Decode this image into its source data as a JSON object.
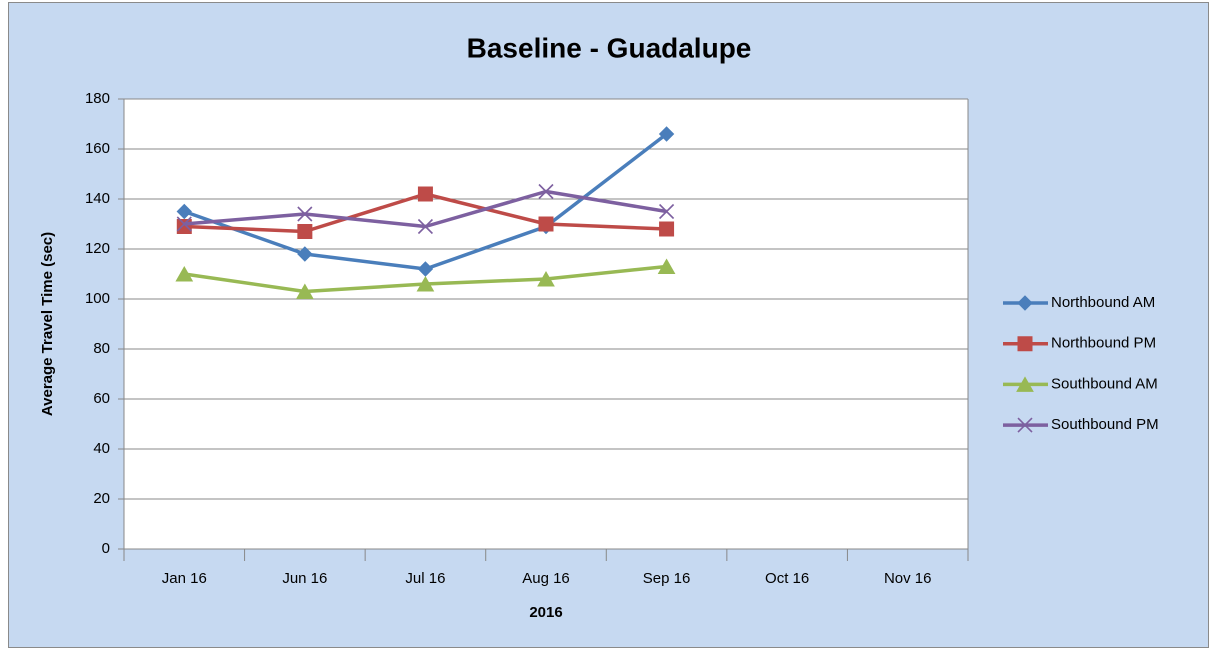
{
  "chart_data": {
    "type": "line",
    "title": "Baseline - Guadalupe",
    "x_label": "2016",
    "y_label": "Average Travel Time (sec)",
    "categories": [
      "Jan 16",
      "Jun 16",
      "Jul 16",
      "Aug 16",
      "Sep 16",
      "Oct 16",
      "Nov 16"
    ],
    "series": [
      {
        "name": "Northbound AM",
        "color": "#4a7ebb",
        "marker": "diamond",
        "values": [
          135,
          118,
          112,
          129,
          166,
          null,
          null
        ]
      },
      {
        "name": "Northbound PM",
        "color": "#be4b48",
        "marker": "square",
        "values": [
          129,
          127,
          142,
          130,
          128,
          null,
          null
        ]
      },
      {
        "name": "Southbound AM",
        "color": "#98b954",
        "marker": "triangle",
        "values": [
          110,
          103,
          106,
          108,
          113,
          null,
          null
        ]
      },
      {
        "name": "Southbound PM",
        "color": "#7d60a0",
        "marker": "x",
        "values": [
          130,
          134,
          129,
          143,
          135,
          null,
          null
        ]
      }
    ],
    "ylim": [
      0,
      180
    ],
    "yticks": [
      0,
      20,
      40,
      60,
      80,
      100,
      120,
      140,
      160,
      180
    ],
    "grid": true,
    "legend": "right"
  }
}
